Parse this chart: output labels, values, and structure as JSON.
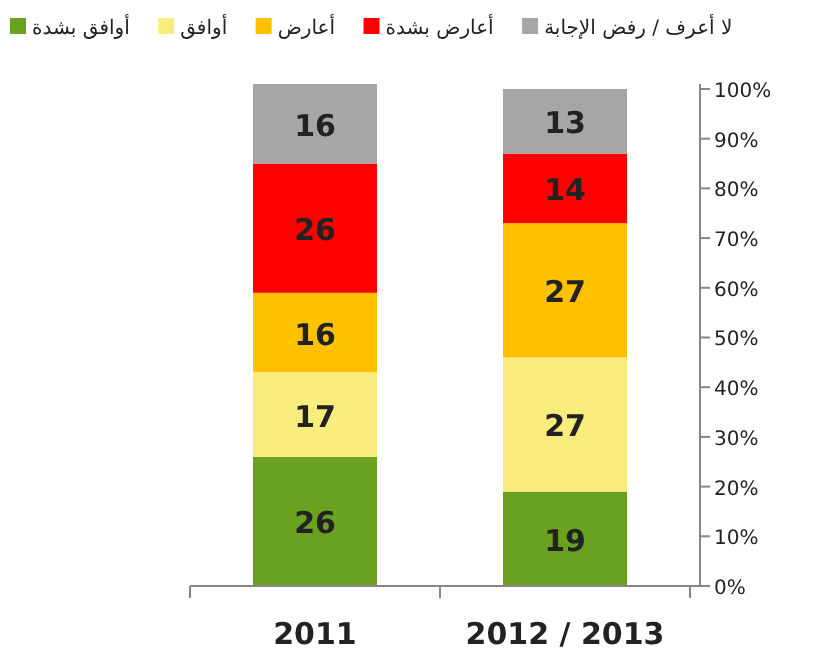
{
  "chart_data": {
    "type": "bar",
    "stacked": true,
    "categories": [
      "2011",
      "2012 / 2013"
    ],
    "series": [
      {
        "name": "أوافق بشدة",
        "color": "#6aa121",
        "values": [
          26,
          19
        ]
      },
      {
        "name": "أوافق",
        "color": "#f7ec7c",
        "values": [
          17,
          27
        ]
      },
      {
        "name": "أعارض",
        "color": "#ffc000",
        "values": [
          16,
          27
        ]
      },
      {
        "name": "أعارض بشدة",
        "color": "#ff0000",
        "values": [
          26,
          14
        ]
      },
      {
        "name": "لا أعرف / رفض الإجابة",
        "color": "#a6a6a6",
        "values": [
          16,
          13
        ]
      }
    ],
    "ylim": [
      0,
      101
    ],
    "yticks": [
      {
        "value": 0,
        "label": "0%"
      },
      {
        "value": 10,
        "label": "10%"
      },
      {
        "value": 20,
        "label": "20%"
      },
      {
        "value": 30,
        "label": "30%"
      },
      {
        "value": 40,
        "label": "40%"
      },
      {
        "value": 50,
        "label": "50%"
      },
      {
        "value": 60,
        "label": "60%"
      },
      {
        "value": 70,
        "label": "70%"
      },
      {
        "value": 80,
        "label": "80%"
      },
      {
        "value": 90,
        "label": "90%"
      },
      {
        "value": 100,
        "label": "100%"
      }
    ],
    "data_labels": true,
    "legend": "top",
    "grid": false
  }
}
